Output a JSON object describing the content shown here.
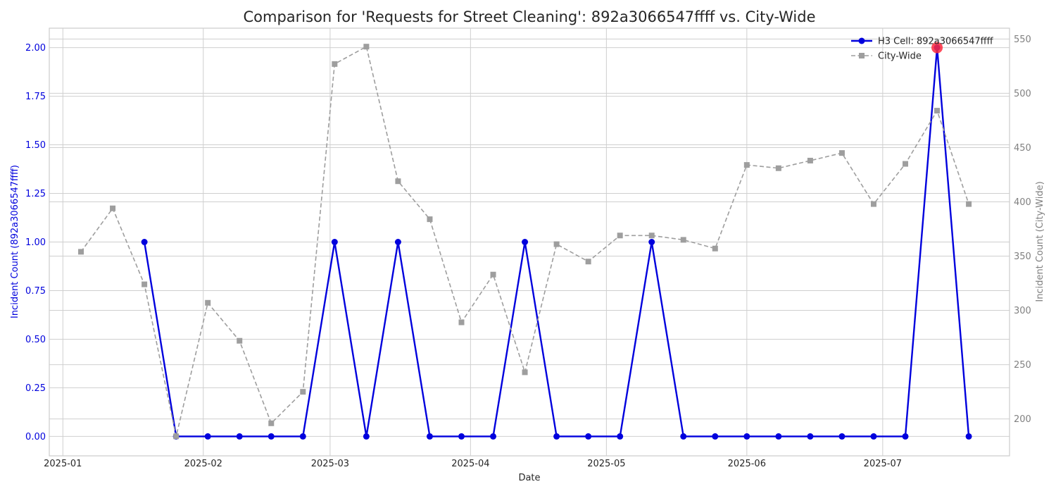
{
  "chart_data": {
    "type": "line",
    "title": "Comparison for 'Requests for Street Cleaning': 892a3066547ffff vs. City-Wide",
    "xlabel": "Date",
    "ylabel_left": "Incident Count (892a3066547ffff)",
    "ylabel_right": "Incident Count (City-Wide)",
    "x_ticks": [
      "2025-01-01",
      "2025-02-01",
      "2025-03-01",
      "2025-04-01",
      "2025-05-01",
      "2025-06-01",
      "2025-07-01"
    ],
    "x_tick_labels": [
      "2025-01",
      "2025-02",
      "2025-03",
      "2025-04",
      "2025-05",
      "2025-06",
      "2025-07"
    ],
    "xlim": [
      "2024-12-29",
      "2025-07-29"
    ],
    "ylim_left": [
      -0.1,
      2.1
    ],
    "ylim_right": [
      166,
      560
    ],
    "y_ticks_left": [
      0.0,
      0.25,
      0.5,
      0.75,
      1.0,
      1.25,
      1.5,
      1.75,
      2.0
    ],
    "y_tick_labels_left": [
      "0.00",
      "0.25",
      "0.50",
      "0.75",
      "1.00",
      "1.25",
      "1.50",
      "1.75",
      "2.00"
    ],
    "y_ticks_right": [
      200,
      250,
      300,
      350,
      400,
      450,
      500,
      550
    ],
    "y_tick_labels_right": [
      "200",
      "250",
      "300",
      "350",
      "400",
      "450",
      "500",
      "550"
    ],
    "grid": true,
    "legend_position": "top-right",
    "series": [
      {
        "name": "H3 Cell: 892a3066547ffff",
        "axis": "left",
        "color": "#0000dd",
        "style": "solid",
        "marker": "circle",
        "x": [
          "2025-01-19",
          "2025-01-26",
          "2025-02-02",
          "2025-02-09",
          "2025-02-16",
          "2025-02-23",
          "2025-03-02",
          "2025-03-09",
          "2025-03-16",
          "2025-03-23",
          "2025-03-30",
          "2025-04-06",
          "2025-04-13",
          "2025-04-20",
          "2025-04-27",
          "2025-05-04",
          "2025-05-11",
          "2025-05-18",
          "2025-05-25",
          "2025-06-01",
          "2025-06-08",
          "2025-06-15",
          "2025-06-22",
          "2025-06-29",
          "2025-07-06",
          "2025-07-13",
          "2025-07-20"
        ],
        "values": [
          1,
          0,
          0,
          0,
          0,
          0,
          1,
          0,
          1,
          0,
          0,
          0,
          1,
          0,
          0,
          0,
          1,
          0,
          0,
          0,
          0,
          0,
          0,
          0,
          0,
          2,
          0
        ]
      },
      {
        "name": "City-Wide",
        "axis": "right",
        "color": "#9e9e9e",
        "style": "dashed",
        "marker": "square",
        "x": [
          "2025-01-05",
          "2025-01-12",
          "2025-01-19",
          "2025-01-26",
          "2025-02-02",
          "2025-02-09",
          "2025-02-16",
          "2025-02-23",
          "2025-03-02",
          "2025-03-09",
          "2025-03-16",
          "2025-03-23",
          "2025-03-30",
          "2025-04-06",
          "2025-04-13",
          "2025-04-20",
          "2025-04-27",
          "2025-05-04",
          "2025-05-11",
          "2025-05-18",
          "2025-05-25",
          "2025-06-01",
          "2025-06-08",
          "2025-06-15",
          "2025-06-22",
          "2025-06-29",
          "2025-07-06",
          "2025-07-13",
          "2025-07-20"
        ],
        "values": [
          354,
          394,
          324,
          184,
          307,
          272,
          196,
          225,
          527,
          543,
          419,
          384,
          289,
          333,
          243,
          361,
          345,
          369,
          369,
          365,
          357,
          434,
          431,
          438,
          445,
          398,
          435,
          484,
          398
        ]
      }
    ],
    "highlight": {
      "series": "H3 Cell: 892a3066547ffff",
      "x": "2025-07-13",
      "value": 2,
      "color": "#ff2a3d"
    }
  }
}
